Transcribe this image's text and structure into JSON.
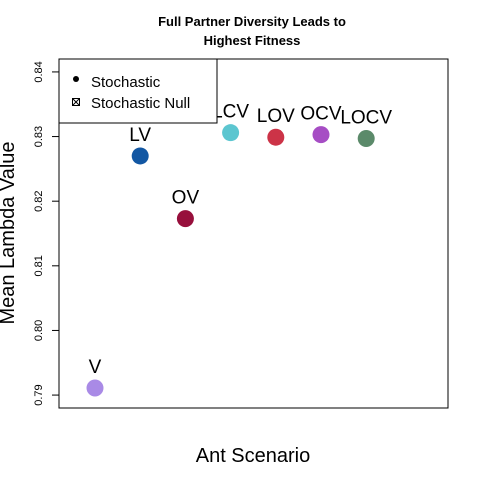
{
  "chart_data": {
    "type": "scatter",
    "title": [
      "Full Partner Diversity Leads to",
      "Highest Fitness"
    ],
    "xlabel": "Ant Scenario",
    "ylabel": "Mean Lambda Value",
    "ylim": [
      0.788,
      0.842
    ],
    "yticks": [
      "0.79",
      "0.80",
      "0.81",
      "0.82",
      "0.83",
      "0.84"
    ],
    "ytick_values": [
      0.79,
      0.8,
      0.81,
      0.82,
      0.83,
      0.84
    ],
    "grid": false,
    "legend": {
      "placement": "top-left",
      "entries": [
        {
          "label": "Stochastic",
          "symbol": "filled-circle"
        },
        {
          "label": "Stochastic Null",
          "symbol": "crossed-square"
        }
      ]
    },
    "points": [
      {
        "label": "V",
        "x": 1,
        "y": 0.7911,
        "color": "#a98ae6"
      },
      {
        "label": "LV",
        "x": 2,
        "y": 0.827,
        "color": "#1257a3"
      },
      {
        "label": "OV",
        "x": 3,
        "y": 0.8173,
        "color": "#970f3c"
      },
      {
        "label": "LCV",
        "x": 4,
        "y": 0.8306,
        "color": "#5cc6d0"
      },
      {
        "label": "LOV",
        "x": 5,
        "y": 0.8299,
        "color": "#cc3347"
      },
      {
        "label": "OCV",
        "x": 6,
        "y": 0.8303,
        "color": "#a64dc4"
      },
      {
        "label": "LOCV",
        "x": 7,
        "y": 0.8297,
        "color": "#5b8a6a"
      }
    ]
  }
}
